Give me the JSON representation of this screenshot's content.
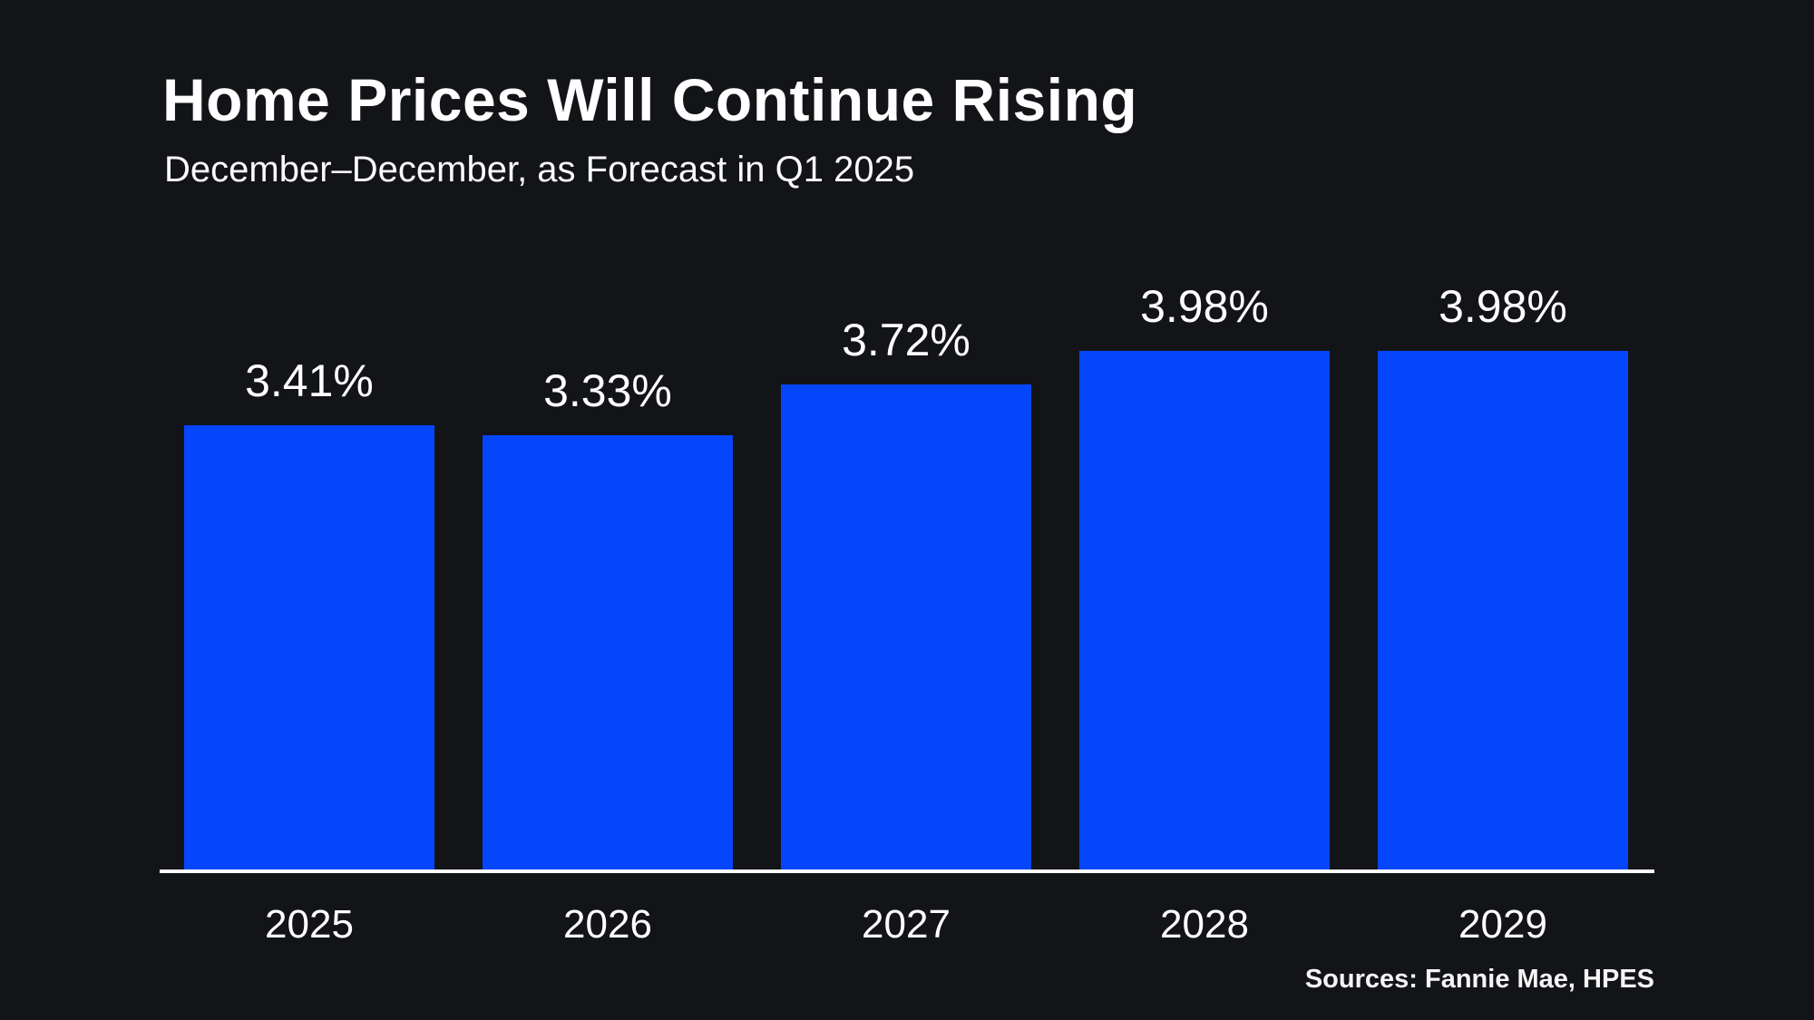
{
  "header": {
    "title": "Home Prices Will Continue Rising",
    "subtitle": "December–December, as Forecast in Q1 2025"
  },
  "footer": {
    "source_note": "Sources: Fannie Mae, HPES"
  },
  "colors": {
    "background": "#131418",
    "bar": "#0546fb",
    "text": "#ffffff",
    "axis_line": "#ffffff"
  },
  "chart_data": {
    "type": "bar",
    "categories": [
      "2025",
      "2026",
      "2027",
      "2028",
      "2029"
    ],
    "values": [
      3.41,
      3.33,
      3.72,
      3.98,
      3.98
    ],
    "value_labels": [
      "3.41%",
      "3.33%",
      "3.72%",
      "3.98%",
      "3.98%"
    ],
    "title": "Home Prices Will Continue Rising",
    "subtitle": "December–December, as Forecast in Q1 2025",
    "xlabel": "",
    "ylabel": "",
    "ylim": [
      0,
      4.4
    ],
    "grid": false,
    "legend": false,
    "bar_color": "#0546fb",
    "data_labels_position": "above-bar",
    "baseline_axis": "x"
  }
}
